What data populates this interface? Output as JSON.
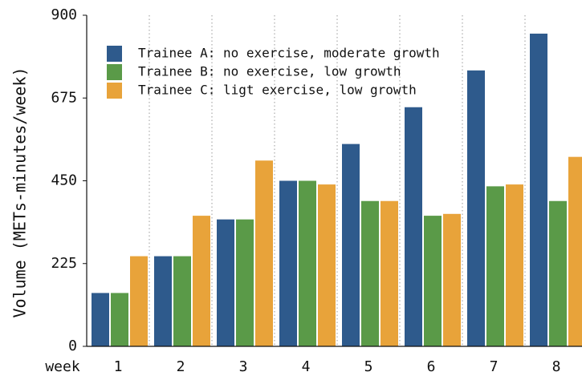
{
  "chart_data": {
    "type": "bar",
    "y_label": "Volume (METs-minutes/week)",
    "x_label": "week",
    "categories": [
      "1",
      "2",
      "3",
      "4",
      "5",
      "6",
      "7",
      "8"
    ],
    "series": [
      {
        "name": "Trainee A: no exercise, moderate growth",
        "color": "#2e5a8c",
        "values": [
          145,
          245,
          345,
          450,
          550,
          650,
          750,
          850
        ]
      },
      {
        "name": "Trainee B: no exercise, low growth",
        "color": "#5a9a48",
        "values": [
          145,
          245,
          345,
          450,
          395,
          355,
          435,
          395
        ]
      },
      {
        "name": "Trainee C: ligt exercise, low growth",
        "color": "#e8a33a",
        "values": [
          245,
          355,
          505,
          440,
          395,
          360,
          440,
          515
        ]
      }
    ],
    "ylim": [
      0,
      900
    ],
    "yticks": [
      0,
      225,
      450,
      675,
      900
    ],
    "legend": "upper left"
  }
}
